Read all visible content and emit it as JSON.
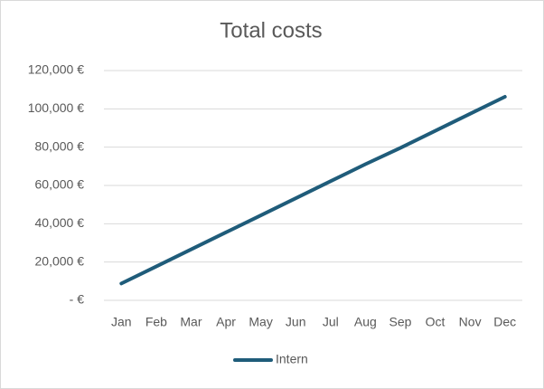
{
  "chart_data": {
    "type": "line",
    "title": "Total costs",
    "categories": [
      "Jan",
      "Feb",
      "Mar",
      "Apr",
      "May",
      "Jun",
      "Jul",
      "Aug",
      "Sep",
      "Oct",
      "Nov",
      "Dec"
    ],
    "series": [
      {
        "name": "Intern",
        "color": "#1f5c7a",
        "values": [
          8800,
          17700,
          26600,
          35500,
          44400,
          53300,
          62200,
          71100,
          79600,
          88500,
          97400,
          106300
        ]
      }
    ],
    "ylim": [
      0,
      120000
    ],
    "yticks": [
      {
        "value": 0,
        "label": "-  €"
      },
      {
        "value": 20000,
        "label": "20,000 €"
      },
      {
        "value": 40000,
        "label": "40,000 €"
      },
      {
        "value": 60000,
        "label": "60,000 €"
      },
      {
        "value": 80000,
        "label": "80,000 €"
      },
      {
        "value": 100000,
        "label": "100,000 €"
      },
      {
        "value": 120000,
        "label": "120,000 €"
      }
    ],
    "grid": true,
    "legend": "bottom"
  }
}
